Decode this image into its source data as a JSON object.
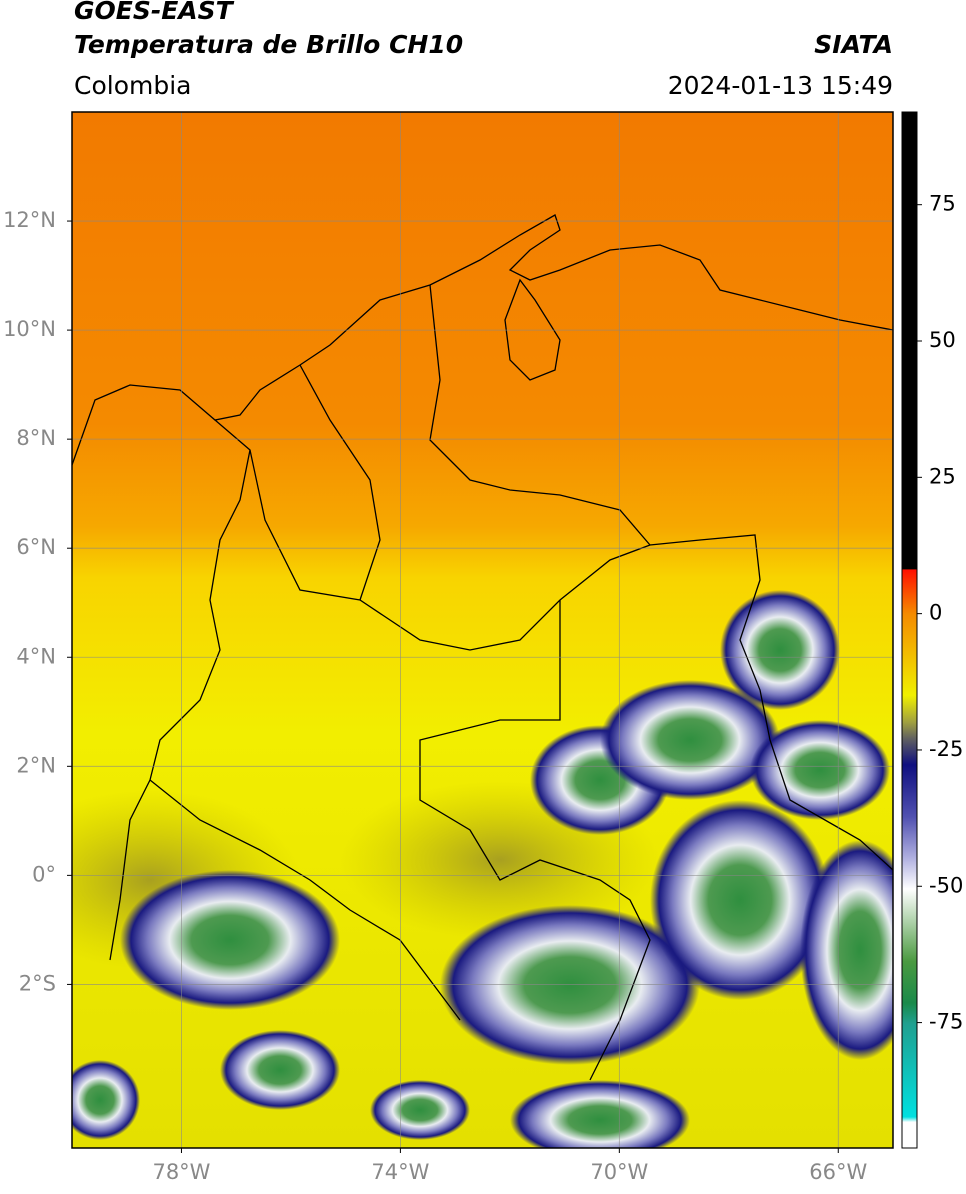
{
  "header": {
    "title": "GOES-EAST",
    "subtitle": "Temperatura de Brillo CH10",
    "source": "SIATA",
    "region": "Colombia",
    "datetime": "2024-01-13 15:49"
  },
  "map": {
    "xlim": [
      -80,
      -65
    ],
    "ylim": [
      -5,
      14
    ],
    "xticks": [
      {
        "value": -78,
        "label": "78°W"
      },
      {
        "value": -74,
        "label": "74°W"
      },
      {
        "value": -70,
        "label": "70°W"
      },
      {
        "value": -66,
        "label": "66°W"
      }
    ],
    "yticks": [
      {
        "value": 12,
        "label": "12°N"
      },
      {
        "value": 10,
        "label": "10°N"
      },
      {
        "value": 8,
        "label": "8°N"
      },
      {
        "value": 6,
        "label": "6°N"
      },
      {
        "value": 4,
        "label": "4°N"
      },
      {
        "value": 2,
        "label": "2°N"
      },
      {
        "value": 0,
        "label": "0°"
      },
      {
        "value": -2,
        "label": "2°S"
      }
    ],
    "grid": true
  },
  "colorbar": {
    "lim": [
      -98,
      92
    ],
    "ticks": [
      75,
      50,
      25,
      0,
      -25,
      -50,
      -75
    ]
  }
}
